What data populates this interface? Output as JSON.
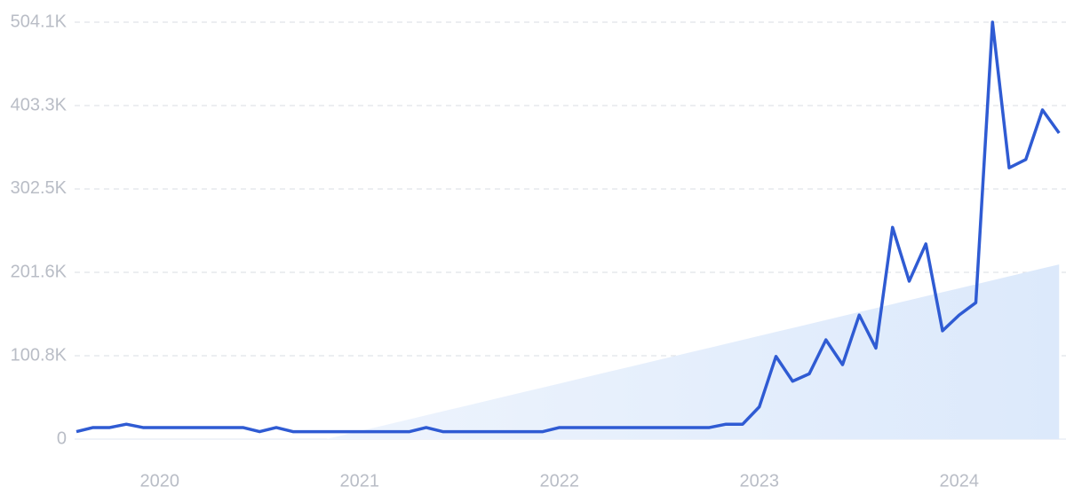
{
  "chart_data": {
    "type": "line",
    "categories": [
      null,
      null,
      null,
      null,
      null,
      "2020",
      null,
      null,
      null,
      null,
      null,
      null,
      null,
      null,
      null,
      null,
      null,
      "2021",
      null,
      null,
      null,
      null,
      null,
      null,
      null,
      null,
      null,
      null,
      null,
      "2022",
      null,
      null,
      null,
      null,
      null,
      null,
      null,
      null,
      null,
      null,
      null,
      "2023",
      null,
      null,
      null,
      null,
      null,
      null,
      null,
      null,
      null,
      null,
      null,
      "2024",
      null,
      null,
      null,
      null,
      null,
      null
    ],
    "series": [
      {
        "kind": "area",
        "color": "#dce9fb",
        "values": [
          null,
          null,
          null,
          null,
          null,
          null,
          null,
          null,
          null,
          null,
          null,
          null,
          null,
          null,
          null,
          0,
          4800,
          9600,
          14400,
          19200,
          24000,
          28800,
          33600,
          38400,
          43200,
          48000,
          52800,
          57600,
          62400,
          67200,
          72000,
          76800,
          81600,
          86400,
          91200,
          96000,
          100800,
          105600,
          110400,
          115200,
          120000,
          124800,
          129600,
          134400,
          139200,
          144000,
          148800,
          153600,
          158400,
          163200,
          168000,
          172800,
          177600,
          182400,
          187200,
          192000,
          196800,
          201600,
          206400,
          211200
        ]
      },
      {
        "kind": "line",
        "color": "#2f5bd3",
        "values": [
          9000,
          14000,
          14000,
          18000,
          14000,
          14000,
          14000,
          14000,
          14000,
          14000,
          14000,
          9000,
          14000,
          9000,
          9000,
          9000,
          9000,
          9000,
          9000,
          9000,
          9000,
          14000,
          9000,
          9000,
          9000,
          9000,
          9000,
          9000,
          9000,
          14000,
          14000,
          14000,
          14000,
          14000,
          14000,
          14000,
          14000,
          14000,
          14000,
          18000,
          18000,
          39000,
          100000,
          70000,
          79000,
          120000,
          90000,
          150000,
          110000,
          256000,
          191000,
          236000,
          131000,
          150000,
          165000,
          504100,
          328000,
          338000,
          398000,
          370000
        ]
      }
    ],
    "ylim": [
      0,
      504100
    ],
    "yticks": [
      0,
      {
        "value": 100800,
        "label": "100.8K"
      },
      {
        "value": 201600,
        "label": "201.6K"
      },
      {
        "value": 302500,
        "label": "302.5K"
      },
      {
        "value": 403300,
        "label": "403.3K"
      },
      {
        "value": 504100,
        "label": "504.1K"
      }
    ],
    "grid": true
  }
}
